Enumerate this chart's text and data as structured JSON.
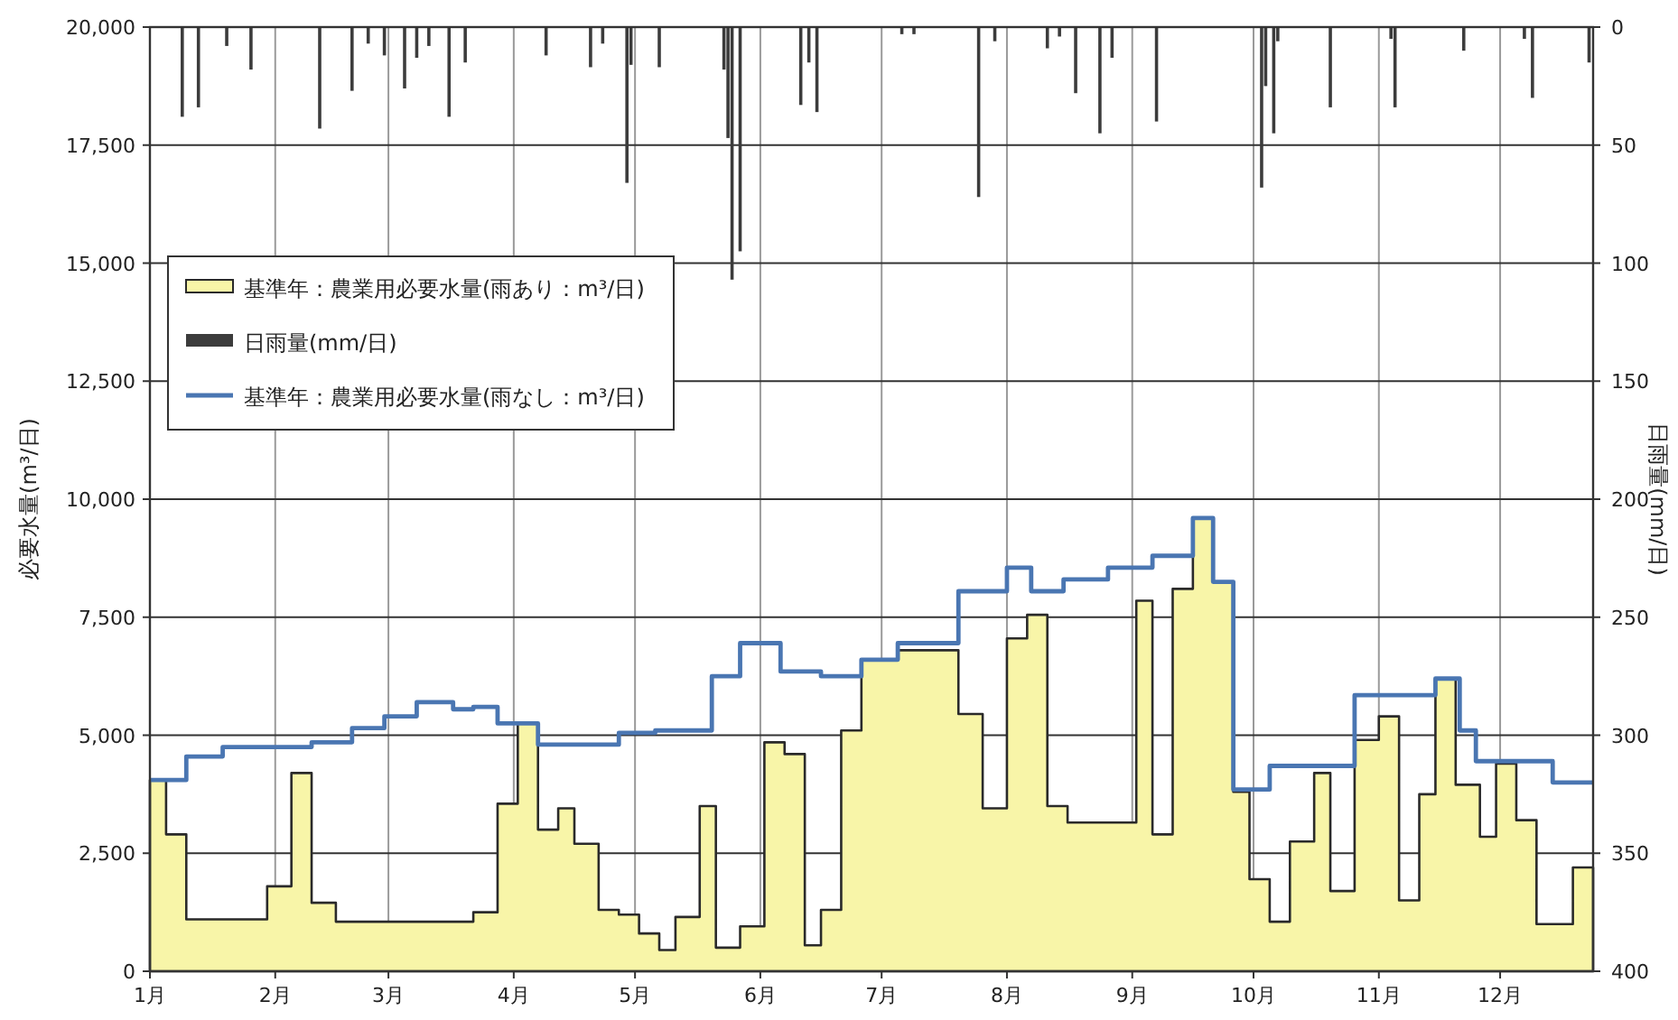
{
  "chart_data": {
    "type": "area",
    "ylabel": "必要水量(m³/日)",
    "y2label": "日雨量(mm/日)",
    "xlim": [
      "--01-01",
      "--12-24"
    ],
    "xticks": [
      {
        "value": "--01-01",
        "label": "1月"
      },
      {
        "value": "--02-01",
        "label": "2月"
      },
      {
        "value": "--03-01",
        "label": "3月"
      },
      {
        "value": "--04-01",
        "label": "4月"
      },
      {
        "value": "--05-01",
        "label": "5月"
      },
      {
        "value": "--06-01",
        "label": "6月"
      },
      {
        "value": "--07-01",
        "label": "7月"
      },
      {
        "value": "--08-01",
        "label": "8月"
      },
      {
        "value": "--09-01",
        "label": "9月"
      },
      {
        "value": "--10-01",
        "label": "10月"
      },
      {
        "value": "--11-01",
        "label": "11月"
      },
      {
        "value": "--12-01",
        "label": "12月"
      }
    ],
    "ylim": [
      0,
      20000
    ],
    "yticks": [
      0,
      {
        "value": 2500,
        "label": "2,500"
      },
      {
        "value": 5000,
        "label": "5,000"
      },
      {
        "value": 7500,
        "label": "7,500"
      },
      {
        "value": 10000,
        "label": "10,000"
      },
      {
        "value": 12500,
        "label": "12,500"
      },
      {
        "value": 15000,
        "label": "15,000"
      },
      {
        "value": 17500,
        "label": "17,500"
      },
      {
        "value": 20000,
        "label": "20,000"
      }
    ],
    "y2lim": [
      400,
      0
    ],
    "y2ticks": [
      0,
      50,
      100,
      150,
      200,
      250,
      300,
      350,
      400
    ],
    "grid": true,
    "legend": "top left",
    "series": [
      {
        "name": "基準年：農業用必要水量(雨あり：m³/日)",
        "color": "#f8f5a8",
        "x": [
          "--01-01",
          "--01-05",
          "--01-10",
          "--01-30",
          "--02-05",
          "--02-10",
          "--02-16",
          "--03-22",
          "--03-28",
          "--04-02",
          "--04-07",
          "--04-12",
          "--04-16",
          "--04-22",
          "--04-27",
          "--05-02",
          "--05-07",
          "--05-11",
          "--05-17",
          "--05-21",
          "--05-27",
          "--06-02",
          "--06-07",
          "--06-12",
          "--06-16",
          "--06-21",
          "--06-26",
          "--07-05",
          "--07-20",
          "--07-26",
          "--08-01",
          "--08-06",
          "--08-11",
          "--08-16",
          "--09-02",
          "--09-06",
          "--09-11",
          "--09-16",
          "--09-21",
          "--09-26",
          "--09-30",
          "--10-05",
          "--10-10",
          "--10-16",
          "--10-20",
          "--10-26",
          "--11-01",
          "--11-06",
          "--11-11",
          "--11-15",
          "--11-20",
          "--11-26",
          "--11-30",
          "--12-05",
          "--12-10",
          "--12-19",
          "--12-24"
        ],
        "values": [
          4050,
          2900,
          1100,
          1800,
          4200,
          1450,
          1050,
          1250,
          3550,
          5250,
          3000,
          3450,
          2700,
          1300,
          1200,
          800,
          450,
          1150,
          3500,
          500,
          950,
          4850,
          4600,
          550,
          1300,
          5100,
          6600,
          6800,
          5450,
          3450,
          7050,
          7550,
          3500,
          3150,
          7850,
          2900,
          8100,
          9600,
          8250,
          3800,
          1950,
          1050,
          2750,
          4200,
          1700,
          4900,
          5400,
          1500,
          3750,
          6200,
          3950,
          2850,
          4400,
          3200,
          1000,
          2200,
          2200
        ]
      },
      {
        "name": "日雨量(mm/日)",
        "type": "bar",
        "axis": "y2",
        "color": "#3c3c3c",
        "x": [
          "--01-09",
          "--01-13",
          "--01-20",
          "--01-26",
          "--02-12",
          "--02-20",
          "--02-24",
          "--02-28",
          "--03-05",
          "--03-08",
          "--03-11",
          "--03-16",
          "--03-20",
          "--04-09",
          "--04-20",
          "--04-23",
          "--04-29",
          "--04-30",
          "--05-07",
          "--05-23",
          "--05-24",
          "--05-25",
          "--05-27",
          "--06-11",
          "--06-13",
          "--06-15",
          "--07-06",
          "--07-09",
          "--07-25",
          "--07-29",
          "--08-11",
          "--08-14",
          "--08-18",
          "--08-24",
          "--08-27",
          "--09-07",
          "--10-03",
          "--10-04",
          "--10-06",
          "--10-07",
          "--10-20",
          "--11-04",
          "--11-05",
          "--11-22",
          "--12-07",
          "--12-09",
          "--12-23"
        ],
        "values": [
          38,
          34,
          8,
          18,
          43,
          27,
          7,
          12,
          26,
          13,
          8,
          38,
          15,
          12,
          17,
          7,
          66,
          16,
          17,
          18,
          47,
          107,
          95,
          33,
          15,
          36,
          3,
          3,
          72,
          6,
          9,
          4,
          28,
          45,
          13,
          40,
          68,
          25,
          45,
          6,
          34,
          5,
          34,
          10,
          5,
          30,
          15
        ]
      },
      {
        "name": "基準年：農業用必要水量(雨なし：m³/日)",
        "type": "step",
        "color": "#4a76b2",
        "x": [
          "--01-01",
          "--01-10",
          "--01-19",
          "--02-10",
          "--02-20",
          "--02-28",
          "--03-08",
          "--03-17",
          "--03-22",
          "--03-28",
          "--04-07",
          "--04-27",
          "--05-06",
          "--05-20",
          "--05-27",
          "--06-06",
          "--06-16",
          "--06-26",
          "--07-05",
          "--07-20",
          "--08-01",
          "--08-07",
          "--08-15",
          "--08-26",
          "--09-06",
          "--09-16",
          "--09-21",
          "--09-26",
          "--10-05",
          "--10-26",
          "--11-15",
          "--11-21",
          "--11-25",
          "--12-14",
          "--12-24"
        ],
        "values": [
          4050,
          4550,
          4750,
          4850,
          5150,
          5400,
          5700,
          5550,
          5600,
          5250,
          4800,
          5050,
          5100,
          6250,
          6950,
          6350,
          6250,
          6600,
          6950,
          8050,
          8550,
          8050,
          8300,
          8550,
          8800,
          9600,
          8250,
          3850,
          4350,
          5850,
          6200,
          5100,
          4450,
          4000,
          4000
        ]
      }
    ]
  }
}
